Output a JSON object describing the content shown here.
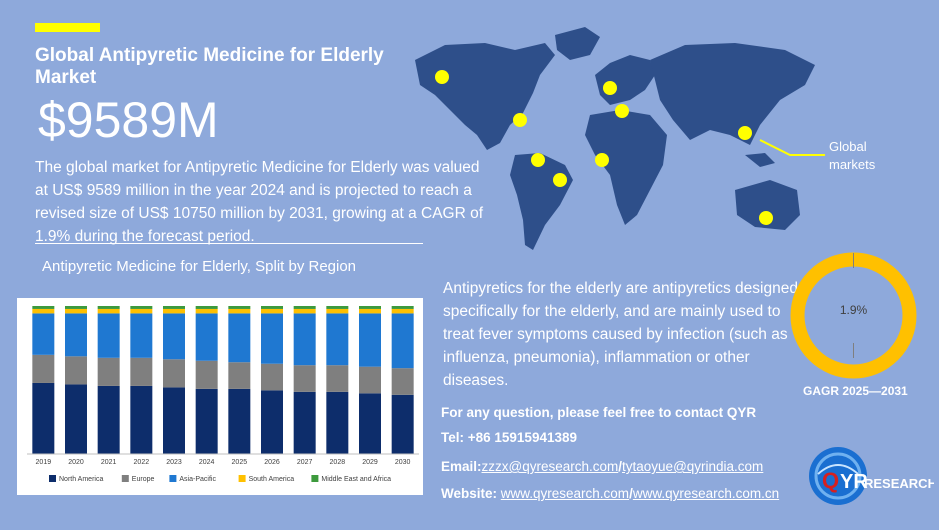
{
  "header": {
    "title": "Global Antipyretic Medicine for Elderly Market",
    "market_value": "$9589M",
    "description": "The global market for Antipyretic Medicine for Elderly was valued at US$ 9589 million in the year 2024 and is projected to reach a revised size of US$ 10750 million by 2031, growing at a CAGR of 1.9% during the forecast period."
  },
  "map": {
    "label": "Global markets",
    "colors": {
      "land": "#2e4f8a",
      "marker": "#ffff00",
      "background": "#8ea9db"
    }
  },
  "chart_section": {
    "title": "Antipyretic Medicine for Elderly, Split by Region"
  },
  "chart_data": {
    "type": "bar",
    "stacked": true,
    "categories": [
      "2019",
      "2020",
      "2021",
      "2022",
      "2023",
      "2024",
      "2025",
      "2026",
      "2027",
      "2028",
      "2029",
      "2030"
    ],
    "series": [
      {
        "name": "North America",
        "color": "#0d2d6b",
        "values": [
          48,
          47,
          46,
          46,
          45,
          44,
          44,
          43,
          42,
          42,
          41,
          40
        ]
      },
      {
        "name": "Europe",
        "color": "#7f7f7f",
        "values": [
          19,
          19,
          19,
          19,
          19,
          19,
          18,
          18,
          18,
          18,
          18,
          18
        ]
      },
      {
        "name": "Asia-Pacific",
        "color": "#1f78d1",
        "values": [
          28,
          29,
          30,
          30,
          31,
          32,
          33,
          34,
          35,
          35,
          36,
          37
        ]
      },
      {
        "name": "South America",
        "color": "#ffc000",
        "values": [
          3,
          3,
          3,
          3,
          3,
          3,
          3,
          3,
          3,
          3,
          3,
          3
        ]
      },
      {
        "name": "Middle East and Africa",
        "color": "#3d9a3d",
        "values": [
          2,
          2,
          2,
          2,
          2,
          2,
          2,
          2,
          2,
          2,
          2,
          2
        ]
      }
    ],
    "ylim": [
      0,
      100
    ],
    "legend_position": "bottom"
  },
  "info": {
    "text": "Antipyretics for the elderly are antipyretics designed specifically for the elderly, and are mainly used to treat fever symptoms caused by infection (such as influenza, pneumonia), inflammation or other diseases."
  },
  "cagr": {
    "value": "1.9%",
    "label": "GAGR 2025—2031",
    "ring_color": "#ffc000"
  },
  "contact": {
    "question": "For any question, please feel free to contact QYR",
    "tel_label": "Tel: ",
    "tel": "+86 15915941389",
    "email_label": "Email:",
    "email1": "zzzx@qyresearch.com",
    "email2": "tytaoyue@qyrindia.com",
    "website_label": "Website: ",
    "website1": "www.qyresearch.com",
    "website2": "www.qyresearch.com.cn",
    "separator": "/"
  },
  "logo": {
    "q": "Q",
    "yr": "YR",
    "research": "RESEARCH"
  }
}
